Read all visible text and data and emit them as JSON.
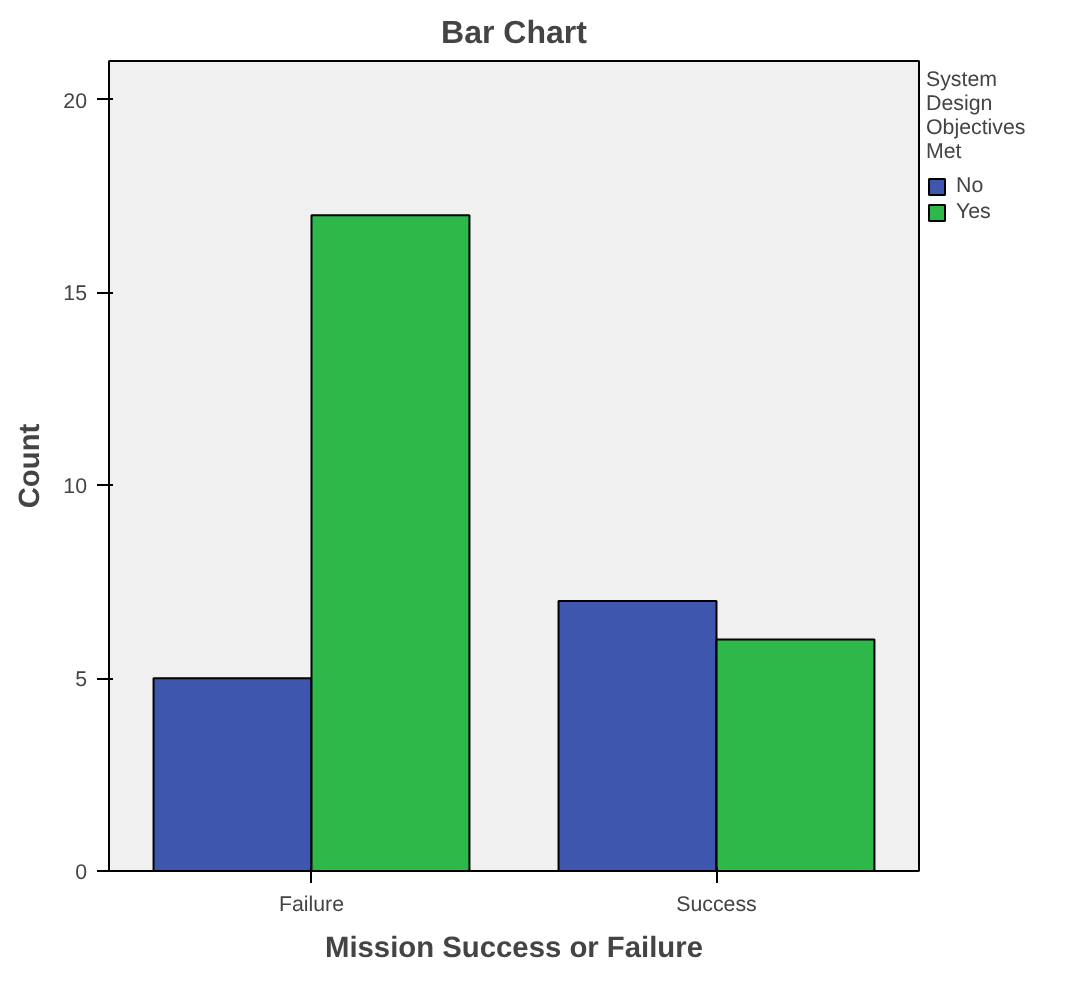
{
  "chart_data": {
    "type": "bar",
    "title": "Bar Chart",
    "xlabel": "Mission Success or Failure",
    "ylabel": "Count",
    "categories": [
      "Failure",
      "Success"
    ],
    "series": [
      {
        "name": "No",
        "color": "#3f56ae",
        "values": [
          5,
          7
        ]
      },
      {
        "name": "Yes",
        "color": "#2eb84a",
        "values": [
          17,
          6
        ]
      }
    ],
    "legend_title": "System Design Objectives Met",
    "legend": "right",
    "ylim": [
      0,
      21
    ],
    "yticks": [
      0,
      5,
      10,
      15,
      20
    ]
  }
}
